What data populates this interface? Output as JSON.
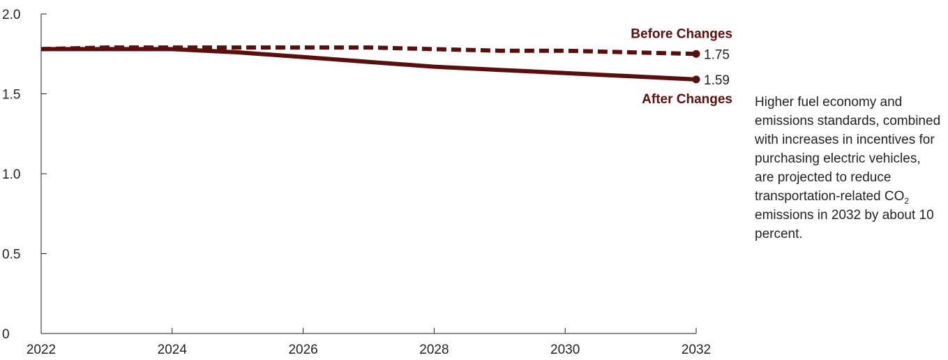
{
  "colors": {
    "series": "#5a0f0f",
    "axis": "#231f20",
    "text": "#231f20"
  },
  "chart_data": {
    "type": "line",
    "title": "",
    "xlabel": "",
    "ylabel": "",
    "xlim": [
      2022,
      2032
    ],
    "ylim": [
      0,
      2.0
    ],
    "x_ticks": [
      "2022",
      "2024",
      "2026",
      "2028",
      "2030",
      "2032"
    ],
    "y_ticks": [
      "0",
      "0.5",
      "1.0",
      "1.5",
      "2.0"
    ],
    "x": [
      2022,
      2023,
      2024,
      2025,
      2026,
      2027,
      2028,
      2029,
      2030,
      2031,
      2032
    ],
    "series": [
      {
        "name": "Before Changes",
        "style": "dashed",
        "values": [
          1.78,
          1.79,
          1.79,
          1.79,
          1.79,
          1.79,
          1.78,
          1.77,
          1.77,
          1.76,
          1.75
        ],
        "end_label": "1.75"
      },
      {
        "name": "After Changes",
        "style": "solid",
        "values": [
          1.78,
          1.78,
          1.78,
          1.76,
          1.73,
          1.7,
          1.67,
          1.65,
          1.63,
          1.61,
          1.59
        ],
        "end_label": "1.59"
      }
    ]
  },
  "annotation": {
    "text_before": "Higher fuel economy and emissions standards, combined with increases in incentives for purchasing electric vehicles, are projected to reduce transportation-related CO",
    "subscript": "2",
    "text_after": " emissions in 2032 by about 10 percent."
  }
}
